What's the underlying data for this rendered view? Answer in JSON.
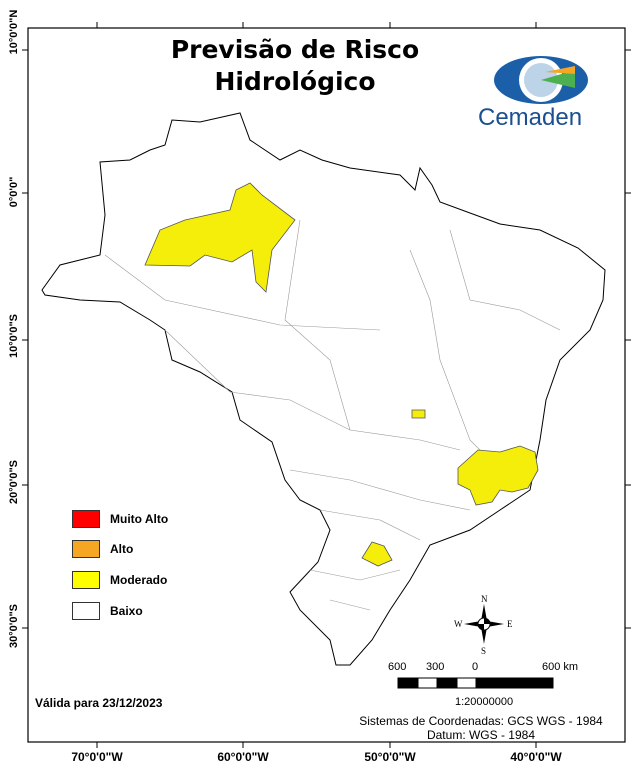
{
  "title": "Previsão de Risco Hidrológico",
  "title_lines": [
    "Previsão de Risco",
    "Hidrológico"
  ],
  "logo": {
    "text": "Cemaden"
  },
  "axes": {
    "latitude_labels": [
      "10°0'0\"N",
      "0°0'0\"",
      "10°0'0\"S",
      "20°0'0\"S",
      "30°0'0\"S"
    ],
    "longitude_labels": [
      "70°0'0\"W",
      "60°0'0\"W",
      "50°0'0\"W",
      "40°0'0\"W"
    ]
  },
  "legend": {
    "items": [
      {
        "label": "Muito Alto",
        "color": "#ff0000"
      },
      {
        "label": "Alto",
        "color": "#f5a623"
      },
      {
        "label": "Moderado",
        "color": "#ffff00"
      },
      {
        "label": "Baixo",
        "color": "#ffffff"
      }
    ]
  },
  "colors": {
    "moderado_fill": "#f5ee0a",
    "border": "#000000"
  },
  "valid_date": "Válida para 23/12/2023",
  "compass": {
    "n": "N",
    "s": "S",
    "e": "E",
    "w": "W"
  },
  "scale_bar": {
    "labels": [
      "600",
      "300",
      "0",
      "600 km"
    ],
    "ratio": "1:20000000"
  },
  "coordinate_system": [
    "Sistemas de Coordenadas: GCS WGS - 1984",
    "Datum: WGS - 1984"
  ]
}
